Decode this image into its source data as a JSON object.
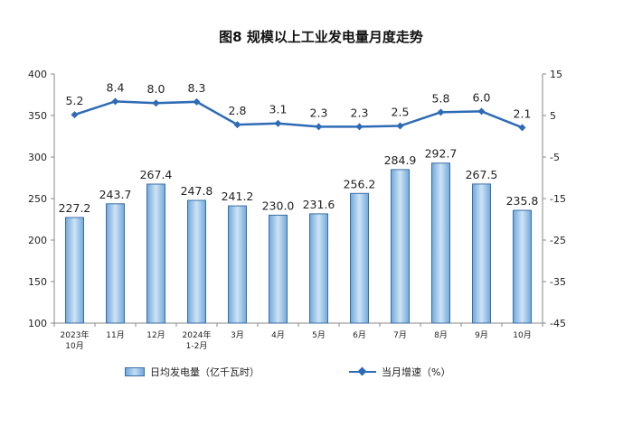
{
  "chart_data": {
    "type": "bar",
    "title": "图8  规模以上工业发电量月度走势",
    "categories": [
      [
        "2023年",
        "10月"
      ],
      [
        "11月"
      ],
      [
        "12月"
      ],
      [
        "2024年",
        "1-2月"
      ],
      [
        "3月"
      ],
      [
        "4月"
      ],
      [
        "5月"
      ],
      [
        "6月"
      ],
      [
        "7月"
      ],
      [
        "8月"
      ],
      [
        "9月"
      ],
      [
        "10月"
      ]
    ],
    "left_axis": {
      "ylim": [
        100,
        400
      ],
      "ticks": [
        100,
        150,
        200,
        250,
        300,
        350,
        400
      ]
    },
    "right_axis": {
      "ylim": [
        -45,
        15
      ],
      "ticks": [
        -45,
        -35,
        -25,
        -15,
        -5,
        5,
        15
      ]
    },
    "series": [
      {
        "name": "日均发电量（亿千瓦时）",
        "type": "bar",
        "axis": "left",
        "values": [
          227.2,
          243.7,
          267.4,
          247.8,
          241.2,
          230.0,
          231.6,
          256.2,
          284.9,
          292.7,
          267.5,
          235.8
        ],
        "labels": [
          "227.2",
          "243.7",
          "267.4",
          "247.8",
          "241.2",
          "230.0",
          "231.6",
          "256.2",
          "284.9",
          "292.7",
          "267.5",
          "235.8"
        ]
      },
      {
        "name": "当月增速（%）",
        "type": "line",
        "axis": "right",
        "values": [
          5.2,
          8.4,
          8.0,
          8.3,
          2.8,
          3.1,
          2.3,
          2.3,
          2.5,
          5.8,
          6.0,
          2.1
        ],
        "labels": [
          "5.2",
          "8.4",
          "8.0",
          "8.3",
          "2.8",
          "3.1",
          "2.3",
          "2.3",
          "2.5",
          "5.8",
          "6.0",
          "2.1"
        ]
      }
    ],
    "colors": {
      "bar_edge": "#3a6ea5",
      "bar_fill": "#9cc3e8",
      "line": "#2e6bb5",
      "axis": "#888888"
    },
    "legend_placement": "bottom-center",
    "grid": false
  }
}
